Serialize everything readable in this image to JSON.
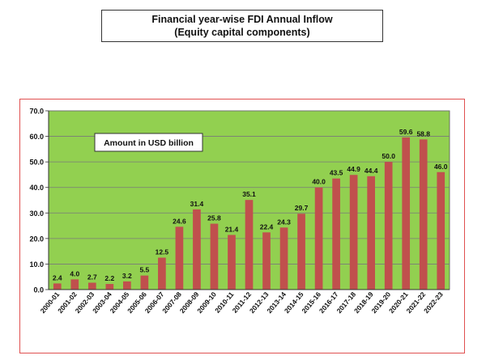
{
  "header": {
    "title_line1": "Financial year-wise FDI Annual Inflow",
    "title_line2": "(Equity capital components)"
  },
  "colors": {
    "plot_bg": "#92d050",
    "bar": "#c0504d",
    "frame": "#e05050",
    "grid": "#7a7a7a"
  },
  "chart_data": {
    "type": "bar",
    "title": "",
    "annotation": "Amount in USD billion",
    "xlabel": "",
    "ylabel": "",
    "ylim": [
      0,
      70
    ],
    "yticks": [
      "0.0",
      "10.0",
      "20.0",
      "30.0",
      "40.0",
      "50.0",
      "60.0",
      "70.0"
    ],
    "grid": true,
    "categories": [
      "2000-01",
      "2001-02",
      "2002-03",
      "2003-04",
      "2004-05",
      "2005-06",
      "2006-07",
      "2007-08",
      "2008-09",
      "2009-10",
      "2010-11",
      "2011-12",
      "2012-13",
      "2013-14",
      "2014-15",
      "2015-16",
      "2016-17",
      "2017-18",
      "2018-19",
      "2019-20",
      "2020-21",
      "2021-22",
      "2022-23"
    ],
    "values": [
      2.4,
      4.0,
      2.7,
      2.2,
      3.2,
      5.5,
      12.5,
      24.6,
      31.4,
      25.8,
      21.4,
      35.1,
      22.4,
      24.3,
      29.7,
      40.0,
      43.5,
      44.9,
      44.4,
      50.0,
      59.6,
      58.8,
      46.0
    ],
    "value_labels": [
      "2.4",
      "4.0",
      "2.7",
      "2.2",
      "3.2",
      "5.5",
      "12.5",
      "24.6",
      "31.4",
      "25.8",
      "21.4",
      "35.1",
      "22.4",
      "24.3",
      "29.7",
      "40.0",
      "43.5",
      "44.9",
      "44.4",
      "50.0",
      "59.6",
      "58.8",
      "46.0"
    ]
  }
}
